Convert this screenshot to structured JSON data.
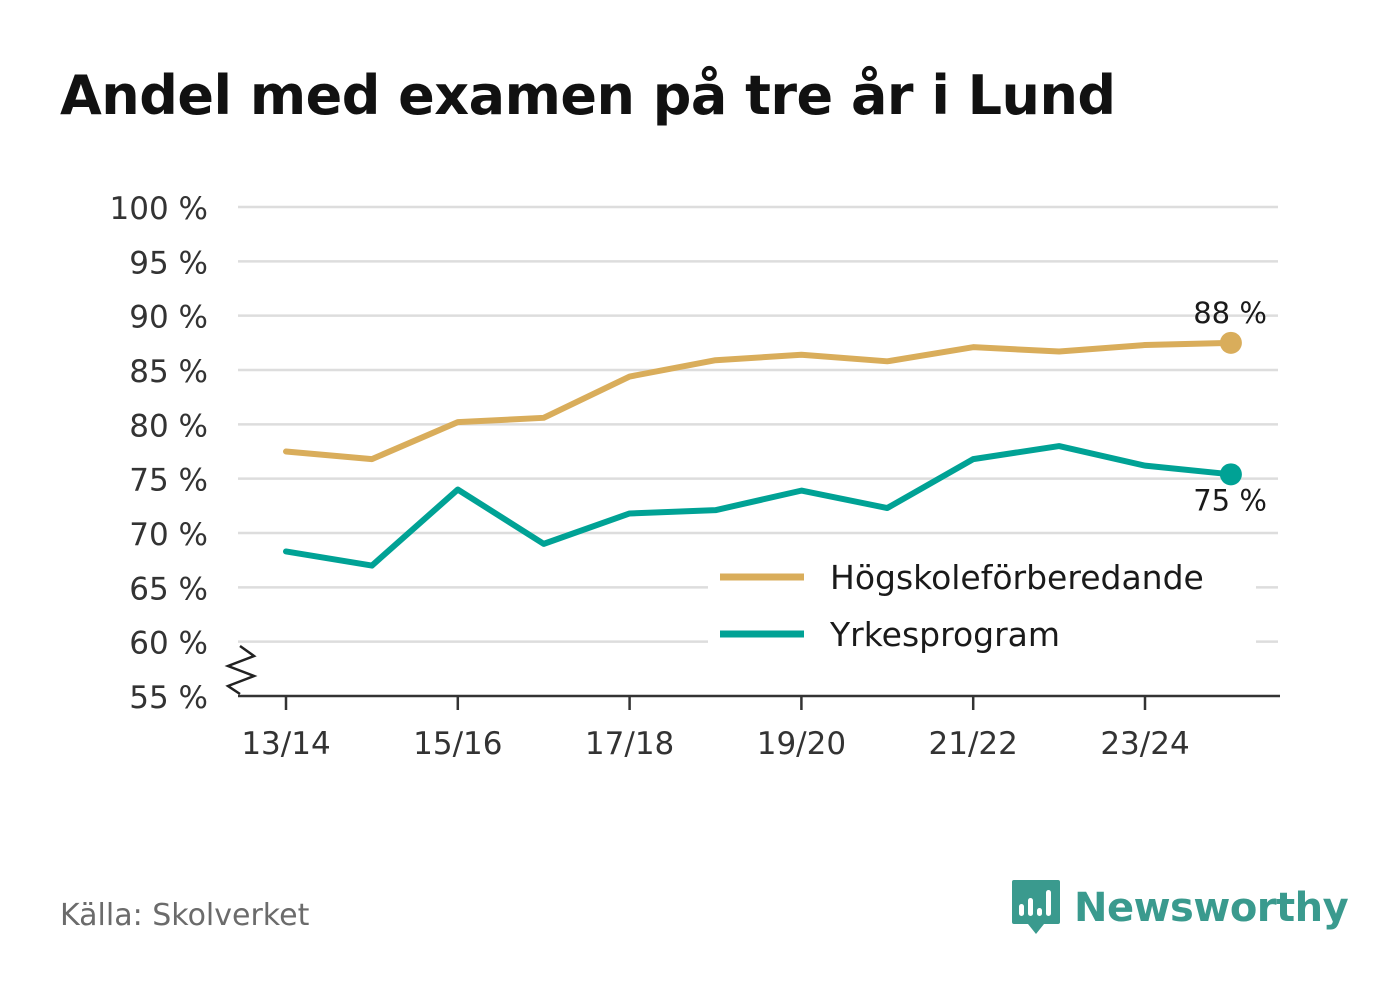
{
  "title": "Andel med examen på tre år i Lund",
  "source": "Källa: Skolverket",
  "brand": {
    "name": "Newsworthy",
    "icon": "newsworthy-bar-chart-icon"
  },
  "colors": {
    "hogskole": "#d9ad5b",
    "yrke": "#00a295",
    "grid": "#dddddd",
    "axis": "#333333",
    "brand": "#3a9a8e"
  },
  "chart_data": {
    "type": "line",
    "title": "Andel med examen på tre år i Lund",
    "xlabel": "",
    "ylabel": "",
    "x": [
      "13/14",
      "14/15",
      "15/16",
      "16/17",
      "17/18",
      "18/19",
      "19/20",
      "20/21",
      "21/22",
      "22/23",
      "23/24",
      "24/25"
    ],
    "x_tick_labels": [
      "13/14",
      "15/16",
      "17/18",
      "19/20",
      "21/22",
      "23/24"
    ],
    "ylim": [
      55,
      100
    ],
    "y_ticks": [
      55,
      60,
      65,
      70,
      75,
      80,
      85,
      90,
      95,
      100
    ],
    "y_tick_labels": [
      "55 %",
      "60 %",
      "65 %",
      "70 %",
      "75 %",
      "80 %",
      "85 %",
      "90 %",
      "95 %",
      "100 %"
    ],
    "axis_break": true,
    "grid": true,
    "legend_position": "bottom-right",
    "series": [
      {
        "name": "Högskoleförberedande",
        "color": "#d9ad5b",
        "values": [
          77.5,
          76.8,
          80.2,
          80.6,
          84.4,
          85.9,
          86.4,
          85.8,
          87.1,
          86.7,
          87.3,
          87.5
        ],
        "end_label": "88 %"
      },
      {
        "name": "Yrkesprogram",
        "color": "#00a295",
        "values": [
          68.3,
          67.0,
          74.0,
          69.0,
          71.8,
          72.1,
          73.9,
          72.3,
          76.8,
          78.0,
          76.2,
          75.4
        ],
        "end_label": "75 %"
      }
    ]
  }
}
